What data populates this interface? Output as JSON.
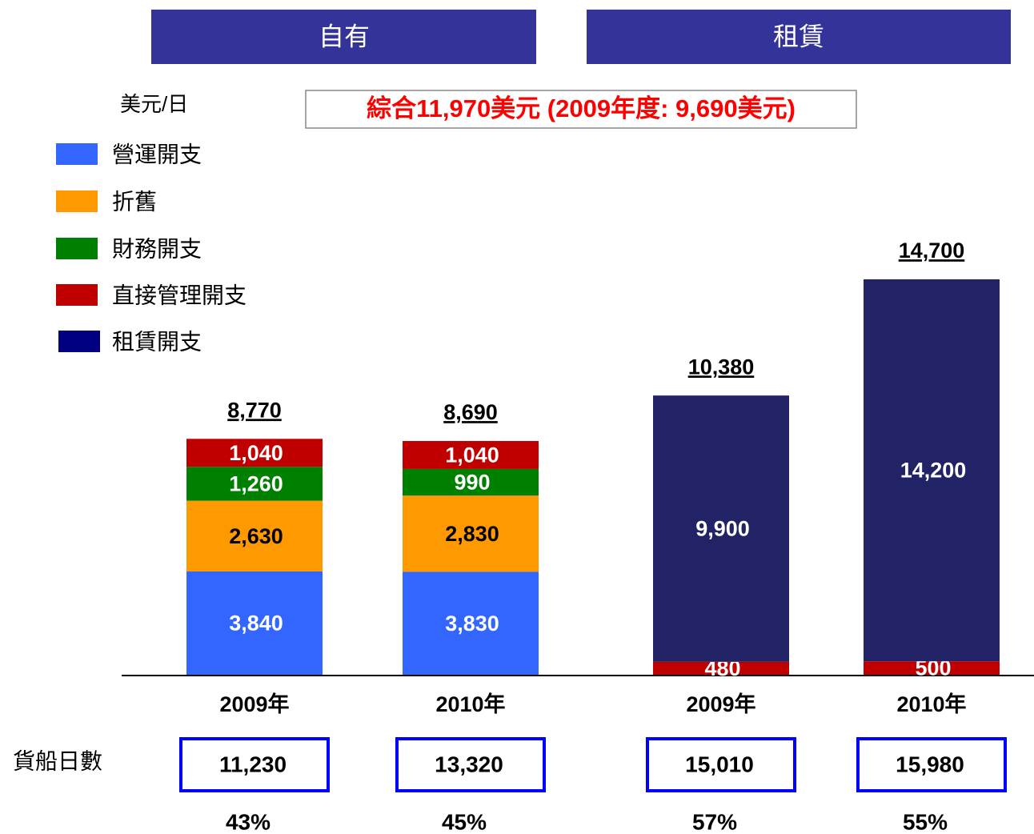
{
  "chart_data": {
    "type": "stacked_bar",
    "headers": [
      "自有",
      "租賃"
    ],
    "unit_label": "美元/日",
    "annotation": "綜合11,970美元 (2009年度: 9,690美元)",
    "categories": [
      "2009年",
      "2010年",
      "2009年",
      "2010年"
    ],
    "series": [
      {
        "name": "營運開支",
        "color": "#3366ff",
        "label_color": "#ffffff",
        "values": [
          3840,
          3830,
          null,
          null
        ],
        "value_labels": [
          "3,840",
          "3,830",
          null,
          null
        ]
      },
      {
        "name": "折舊",
        "color": "#ff9900",
        "label_color": "#000000",
        "values": [
          2630,
          2830,
          null,
          null
        ],
        "value_labels": [
          "2,630",
          "2,830",
          null,
          null
        ]
      },
      {
        "name": "財務開支",
        "color": "#008000",
        "label_color": "#ffffff",
        "values": [
          1260,
          990,
          null,
          null
        ],
        "value_labels": [
          "1,260",
          "990",
          null,
          null
        ]
      },
      {
        "name": "直接管理開支",
        "color": "#c00000",
        "label_color": "#ffffff",
        "values": [
          1040,
          1040,
          480,
          500
        ],
        "value_labels": [
          "1,040",
          "1,040",
          "480",
          "500"
        ]
      },
      {
        "name": "租賃開支",
        "color": "#222266",
        "label_color": "#ffffff",
        "values": [
          null,
          null,
          9900,
          14200
        ],
        "value_labels": [
          null,
          null,
          "9,900",
          "14,200"
        ]
      }
    ],
    "totals": [
      8770,
      8690,
      10380,
      14700
    ],
    "total_labels": [
      "8,770",
      "8,690",
      "10,380",
      "14,700"
    ],
    "ship_days": {
      "label": "貨船日數",
      "values": [
        11230,
        13320,
        15010,
        15980
      ],
      "value_labels": [
        "11,230",
        "13,320",
        "15,010",
        "15,980"
      ]
    },
    "percentages": {
      "values": [
        43,
        45,
        57,
        55
      ],
      "value_labels": [
        "43%",
        "45%",
        "57%",
        "55%"
      ]
    }
  }
}
